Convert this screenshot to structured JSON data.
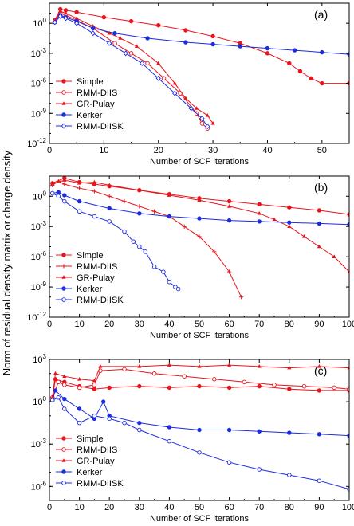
{
  "figure": {
    "ylabel": "Norm of residual density matrix or charge density"
  },
  "colors": {
    "red": "#e8141c",
    "blue": "#1c2ce0",
    "axis": "#000000"
  },
  "chart_data": [
    {
      "type": "line",
      "panel_label": "(a)",
      "xlabel": "Number of SCF iterations",
      "xlim": [
        0,
        55
      ],
      "xticks": [
        0,
        10,
        20,
        30,
        40,
        50
      ],
      "ylim_log10": [
        -12,
        2
      ],
      "yscale": "log",
      "yticks": [
        {
          "exp": 0,
          "label": "10",
          "sup": "0"
        },
        {
          "exp": -3,
          "label": "10",
          "sup": "-3"
        },
        {
          "exp": -6,
          "label": "10",
          "sup": "-6"
        },
        {
          "exp": -9,
          "label": "10",
          "sup": "-9"
        },
        {
          "exp": -12,
          "label": "10",
          "sup": "-12"
        }
      ],
      "legend_position": "bottom-left",
      "series": [
        {
          "name": "Simple",
          "color": "red",
          "marker": "filled-circle",
          "points": [
            [
              1,
              0.3
            ],
            [
              2,
              1.4
            ],
            [
              3,
              1.3
            ],
            [
              5,
              1.1
            ],
            [
              10,
              0.6
            ],
            [
              15,
              0.2
            ],
            [
              20,
              -0.2
            ],
            [
              25,
              -0.7
            ],
            [
              30,
              -1.3
            ],
            [
              35,
              -2.0
            ],
            [
              40,
              -3.0
            ],
            [
              44,
              -4.0
            ],
            [
              46,
              -4.8
            ],
            [
              48,
              -5.5
            ],
            [
              50,
              -6.0
            ],
            [
              55,
              -6.0
            ]
          ]
        },
        {
          "name": "RMM-DIIS",
          "color": "red",
          "marker": "open-circle",
          "points": [
            [
              1,
              0.2
            ],
            [
              2,
              1.0
            ],
            [
              3,
              0.8
            ],
            [
              5,
              0.3
            ],
            [
              8,
              -0.5
            ],
            [
              12,
              -2.0
            ],
            [
              15,
              -3.0
            ],
            [
              18,
              -4.0
            ],
            [
              21,
              -5.5
            ],
            [
              24,
              -7.0
            ],
            [
              27,
              -9.0
            ],
            [
              28,
              -10.0
            ],
            [
              29,
              -10.5
            ]
          ]
        },
        {
          "name": "GR-Pulay",
          "color": "red",
          "marker": "filled-triangle",
          "points": [
            [
              1,
              0.2
            ],
            [
              2,
              1.2
            ],
            [
              3,
              1.0
            ],
            [
              5,
              0.5
            ],
            [
              8,
              -0.3
            ],
            [
              11,
              -1.0
            ],
            [
              13,
              -1.5
            ],
            [
              16,
              -2.3
            ],
            [
              20,
              -4.0
            ],
            [
              23,
              -6.0
            ],
            [
              25,
              -7.5
            ],
            [
              27,
              -8.5
            ],
            [
              29,
              -9.2
            ],
            [
              30,
              -10.0
            ]
          ]
        },
        {
          "name": "Kerker",
          "color": "blue",
          "marker": "filled-circle",
          "points": [
            [
              1,
              0.1
            ],
            [
              2,
              0.8
            ],
            [
              3,
              0.6
            ],
            [
              5,
              0.2
            ],
            [
              8,
              -0.5
            ],
            [
              12,
              -1.0
            ],
            [
              18,
              -1.5
            ],
            [
              25,
              -1.9
            ],
            [
              30,
              -2.1
            ],
            [
              35,
              -2.3
            ],
            [
              40,
              -2.5
            ],
            [
              45,
              -2.7
            ],
            [
              50,
              -2.9
            ],
            [
              55,
              -3.1
            ]
          ]
        },
        {
          "name": "RMM-DIISK",
          "color": "blue",
          "marker": "open-diamond",
          "points": [
            [
              1,
              0.1
            ],
            [
              2,
              0.7
            ],
            [
              3,
              0.5
            ],
            [
              5,
              0.0
            ],
            [
              8,
              -1.0
            ],
            [
              11,
              -2.0
            ],
            [
              14,
              -3.0
            ],
            [
              17,
              -4.0
            ],
            [
              20,
              -5.5
            ],
            [
              23,
              -7.0
            ],
            [
              26,
              -8.5
            ],
            [
              28,
              -9.5
            ],
            [
              29,
              -10.3
            ]
          ]
        }
      ]
    },
    {
      "type": "line",
      "panel_label": "(b)",
      "xlabel": "Number of SCF iterations",
      "xlim": [
        0,
        100
      ],
      "xticks": [
        0,
        10,
        20,
        30,
        40,
        50,
        60,
        70,
        80,
        90,
        100
      ],
      "ylim_log10": [
        -12,
        2
      ],
      "yscale": "log",
      "yticks": [
        {
          "exp": 0,
          "label": "10",
          "sup": "0"
        },
        {
          "exp": -3,
          "label": "10",
          "sup": "-3"
        },
        {
          "exp": -6,
          "label": "10",
          "sup": "-6"
        },
        {
          "exp": -9,
          "label": "10",
          "sup": "-9"
        },
        {
          "exp": -12,
          "label": "10",
          "sup": "-12"
        }
      ],
      "legend_position": "bottom-left",
      "series": [
        {
          "name": "Simple",
          "color": "red",
          "marker": "filled-circle",
          "points": [
            [
              1,
              1.3
            ],
            [
              5,
              1.8
            ],
            [
              10,
              1.4
            ],
            [
              15,
              1.2
            ],
            [
              20,
              1.0
            ],
            [
              30,
              0.6
            ],
            [
              40,
              0.2
            ],
            [
              50,
              -0.2
            ],
            [
              60,
              -0.5
            ],
            [
              70,
              -0.8
            ],
            [
              80,
              -1.1
            ],
            [
              90,
              -1.4
            ],
            [
              100,
              -1.8
            ]
          ]
        },
        {
          "name": "RMM-DIIS",
          "color": "red",
          "marker": "plus",
          "points": [
            [
              1,
              1.1
            ],
            [
              3,
              1.5
            ],
            [
              5,
              1.2
            ],
            [
              10,
              0.8
            ],
            [
              15,
              0.5
            ],
            [
              20,
              0.0
            ],
            [
              25,
              -0.5
            ],
            [
              30,
              -1.0
            ],
            [
              35,
              -1.5
            ],
            [
              40,
              -2.0
            ],
            [
              45,
              -3.0
            ],
            [
              50,
              -4.0
            ],
            [
              55,
              -5.5
            ],
            [
              60,
              -7.5
            ],
            [
              64,
              -10.0
            ]
          ]
        },
        {
          "name": "GR-Pulay",
          "color": "red",
          "marker": "filled-triangle",
          "points": [
            [
              1,
              1.2
            ],
            [
              5,
              1.6
            ],
            [
              10,
              1.3
            ],
            [
              15,
              1.4
            ],
            [
              20,
              1.1
            ],
            [
              30,
              0.6
            ],
            [
              40,
              0.1
            ],
            [
              50,
              -0.4
            ],
            [
              60,
              -1.0
            ],
            [
              70,
              -1.7
            ],
            [
              75,
              -2.3
            ],
            [
              80,
              -3.0
            ],
            [
              85,
              -4.0
            ],
            [
              90,
              -5.0
            ],
            [
              95,
              -6.0
            ],
            [
              100,
              -7.5
            ]
          ]
        },
        {
          "name": "Kerker",
          "color": "blue",
          "marker": "filled-circle",
          "points": [
            [
              1,
              0.3
            ],
            [
              3,
              0.4
            ],
            [
              5,
              0.1
            ],
            [
              10,
              -0.5
            ],
            [
              20,
              -1.2
            ],
            [
              30,
              -1.7
            ],
            [
              40,
              -2.0
            ],
            [
              50,
              -2.2
            ],
            [
              60,
              -2.4
            ],
            [
              70,
              -2.5
            ],
            [
              80,
              -2.6
            ],
            [
              90,
              -2.7
            ],
            [
              100,
              -2.8
            ]
          ]
        },
        {
          "name": "RMM-DIISK",
          "color": "blue",
          "marker": "open-circle",
          "points": [
            [
              1,
              0.3
            ],
            [
              3,
              0.0
            ],
            [
              5,
              -0.5
            ],
            [
              10,
              -1.5
            ],
            [
              15,
              -2.0
            ],
            [
              20,
              -2.5
            ],
            [
              25,
              -3.5
            ],
            [
              28,
              -4.5
            ],
            [
              30,
              -5.0
            ],
            [
              32,
              -5.5
            ],
            [
              35,
              -7.0
            ],
            [
              38,
              -7.5
            ],
            [
              40,
              -8.5
            ],
            [
              42,
              -9.0
            ],
            [
              43,
              -9.2
            ]
          ]
        }
      ]
    },
    {
      "type": "line",
      "panel_label": "(c)",
      "xlabel": "Number of SCF iterations",
      "xlim": [
        0,
        100
      ],
      "xticks": [
        0,
        10,
        20,
        30,
        40,
        50,
        60,
        70,
        80,
        90,
        100
      ],
      "ylim_log10": [
        -7,
        3
      ],
      "yscale": "log",
      "yticks": [
        {
          "exp": 3,
          "label": "10",
          "sup": "3"
        },
        {
          "exp": 0,
          "label": "10",
          "sup": "0"
        },
        {
          "exp": -3,
          "label": "10",
          "sup": "-3"
        },
        {
          "exp": -6,
          "label": "10",
          "sup": "-6"
        }
      ],
      "legend_position": "bottom-left",
      "series": [
        {
          "name": "Simple",
          "color": "red",
          "marker": "filled-circle",
          "points": [
            [
              1,
              0.3
            ],
            [
              2,
              1.6
            ],
            [
              5,
              1.4
            ],
            [
              10,
              1.1
            ],
            [
              15,
              0.9
            ],
            [
              20,
              1.0
            ],
            [
              30,
              1.1
            ],
            [
              40,
              1.0
            ],
            [
              50,
              1.1
            ],
            [
              60,
              1.0
            ],
            [
              70,
              1.1
            ],
            [
              80,
              0.9
            ],
            [
              90,
              0.8
            ],
            [
              100,
              0.8
            ]
          ]
        },
        {
          "name": "RMM-DIIS",
          "color": "red",
          "marker": "open-circle",
          "points": [
            [
              1,
              0.3
            ],
            [
              3,
              1.4
            ],
            [
              5,
              1.2
            ],
            [
              10,
              1.0
            ],
            [
              15,
              1.2
            ],
            [
              17,
              2.2
            ],
            [
              25,
              2.3
            ],
            [
              35,
              2.0
            ],
            [
              45,
              1.8
            ],
            [
              55,
              1.6
            ],
            [
              65,
              1.4
            ],
            [
              75,
              1.2
            ],
            [
              85,
              1.1
            ],
            [
              95,
              1.0
            ],
            [
              100,
              0.9
            ]
          ]
        },
        {
          "name": "GR-Pulay",
          "color": "red",
          "marker": "filled-triangle",
          "points": [
            [
              1,
              0.3
            ],
            [
              2,
              2.0
            ],
            [
              5,
              1.8
            ],
            [
              10,
              1.6
            ],
            [
              15,
              1.5
            ],
            [
              17,
              2.5
            ],
            [
              30,
              2.5
            ],
            [
              40,
              2.6
            ],
            [
              50,
              2.5
            ],
            [
              60,
              2.6
            ],
            [
              70,
              2.5
            ],
            [
              80,
              2.4
            ],
            [
              90,
              2.5
            ],
            [
              100,
              2.4
            ]
          ]
        },
        {
          "name": "Kerker",
          "color": "blue",
          "marker": "filled-circle",
          "points": [
            [
              1,
              0.1
            ],
            [
              2,
              0.8
            ],
            [
              5,
              0.2
            ],
            [
              10,
              -0.5
            ],
            [
              15,
              -1.2
            ],
            [
              18,
              0.0
            ],
            [
              20,
              -1.0
            ],
            [
              30,
              -1.5
            ],
            [
              40,
              -1.8
            ],
            [
              50,
              -2.0
            ],
            [
              60,
              -2.0
            ],
            [
              70,
              -2.1
            ],
            [
              80,
              -2.2
            ],
            [
              90,
              -2.3
            ],
            [
              100,
              -2.4
            ]
          ]
        },
        {
          "name": "RMM-DIISK",
          "color": "blue",
          "marker": "open-circle",
          "points": [
            [
              1,
              0.1
            ],
            [
              3,
              0.3
            ],
            [
              5,
              -0.5
            ],
            [
              10,
              -1.5
            ],
            [
              15,
              -1.0
            ],
            [
              20,
              -1.2
            ],
            [
              25,
              -1.5
            ],
            [
              30,
              -2.0
            ],
            [
              40,
              -2.8
            ],
            [
              50,
              -3.6
            ],
            [
              60,
              -4.3
            ],
            [
              70,
              -4.8
            ],
            [
              80,
              -5.2
            ],
            [
              90,
              -5.6
            ],
            [
              100,
              -6.2
            ]
          ]
        }
      ]
    }
  ]
}
